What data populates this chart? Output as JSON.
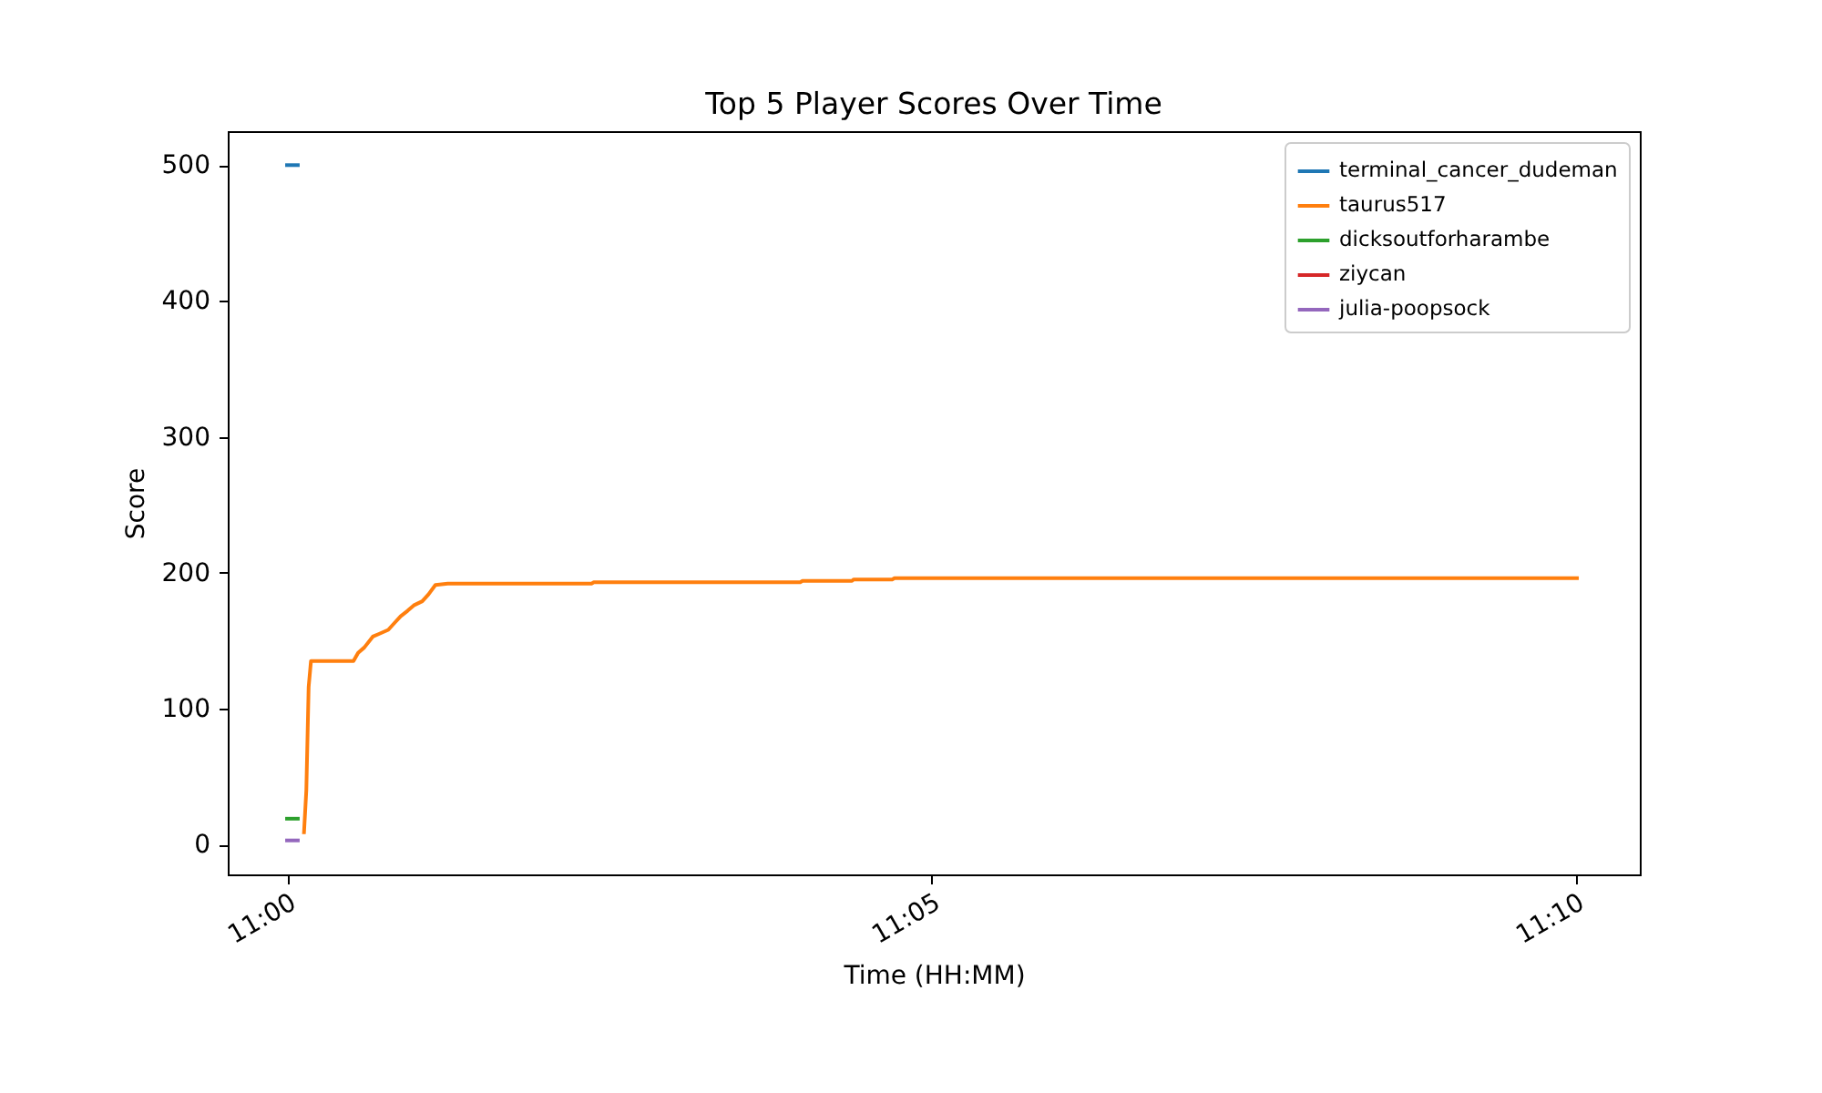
{
  "chart_data": {
    "type": "line",
    "title": "Top 5 Player Scores Over Time",
    "xlabel": "Time (HH:MM)",
    "ylabel": "Score",
    "xlim": [
      10.992333,
      11.175028
    ],
    "xticks": [
      {
        "value": 11,
        "label": "11:00"
      },
      {
        "value": 11.083333,
        "label": "11:05"
      },
      {
        "value": 11.166667,
        "label": "11:10"
      }
    ],
    "ylim": [
      -22,
      525
    ],
    "yticks": [
      0,
      100,
      200,
      300,
      400,
      500
    ],
    "grid": false,
    "legend": "top right",
    "series": [
      {
        "name": "terminal_cancer_dudeman",
        "color": "#1f77b4",
        "x": [
          11.0,
          11.0014
        ],
        "values": [
          500,
          500
        ]
      },
      {
        "name": "taurus517",
        "color": "#ff7f0e",
        "x": [
          11.0022,
          11.0025,
          11.0028,
          11.0031,
          11.0086,
          11.0092,
          11.01,
          11.0111,
          11.0119,
          11.0131,
          11.0139,
          11.0147,
          11.0156,
          11.0164,
          11.0175,
          11.0183,
          11.0192,
          11.0208,
          11.0394,
          11.0397,
          11.0664,
          11.0667,
          11.0731,
          11.0733,
          11.0783,
          11.0786,
          11.1669
        ],
        "values": [
          9,
          40,
          116,
          135,
          135,
          141,
          145,
          153,
          155,
          158,
          163,
          168,
          172,
          176,
          179,
          184,
          191,
          192,
          192,
          193,
          193,
          194,
          194,
          195,
          195,
          196,
          196
        ]
      },
      {
        "name": "dicksoutforharambe",
        "color": "#2ca02c",
        "x": [
          11.0,
          11.0014
        ],
        "values": [
          19,
          19
        ]
      },
      {
        "name": "ziycan",
        "color": "#d62728"
      },
      {
        "name": "julia-poopsock",
        "color": "#9467bd",
        "x": [
          11.0,
          11.0014
        ],
        "values": [
          3,
          3
        ]
      }
    ]
  }
}
